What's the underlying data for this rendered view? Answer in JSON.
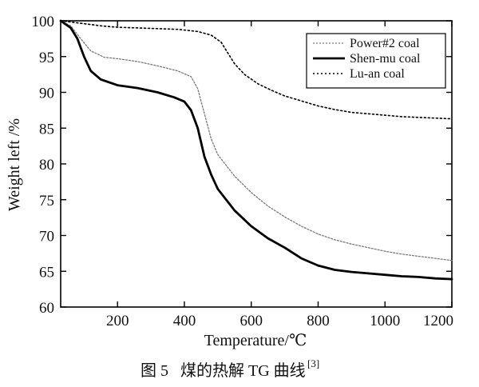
{
  "chart_data": {
    "type": "line",
    "title": "",
    "xlabel": "Temperature/℃",
    "ylabel": "Weight left /%",
    "xlim": [
      30,
      1200
    ],
    "ylim": [
      60,
      100
    ],
    "x_ticks": [
      200,
      400,
      600,
      800,
      1000,
      1200
    ],
    "y_ticks": [
      60,
      65,
      70,
      75,
      80,
      85,
      90,
      95,
      100
    ],
    "x_tick_labels": [
      "200",
      "400",
      "600",
      "800",
      "1000",
      "1200"
    ],
    "y_tick_labels": [
      "60",
      "65",
      "70",
      "75",
      "80",
      "85",
      "90",
      "95",
      "100"
    ],
    "grid": false,
    "legend_position": "top-right",
    "series": [
      {
        "name": "Power#2 coal",
        "line_style": "dotted-gray",
        "color": "#7a7a7a",
        "points": [
          [
            30,
            100
          ],
          [
            60,
            99.3
          ],
          [
            90,
            97.5
          ],
          [
            120,
            95.8
          ],
          [
            160,
            94.9
          ],
          [
            200,
            94.7
          ],
          [
            260,
            94.3
          ],
          [
            320,
            93.7
          ],
          [
            380,
            93.0
          ],
          [
            420,
            92.2
          ],
          [
            440,
            90.5
          ],
          [
            460,
            87.0
          ],
          [
            480,
            83.5
          ],
          [
            500,
            81.3
          ],
          [
            550,
            78.3
          ],
          [
            600,
            76.0
          ],
          [
            650,
            74.1
          ],
          [
            700,
            72.6
          ],
          [
            750,
            71.3
          ],
          [
            800,
            70.2
          ],
          [
            850,
            69.4
          ],
          [
            900,
            68.8
          ],
          [
            950,
            68.3
          ],
          [
            1000,
            67.8
          ],
          [
            1050,
            67.4
          ],
          [
            1100,
            67.1
          ],
          [
            1150,
            66.8
          ],
          [
            1200,
            66.5
          ]
        ]
      },
      {
        "name": "Shen-mu coal",
        "line_style": "solid-thick",
        "color": "#000000",
        "points": [
          [
            30,
            100
          ],
          [
            60,
            99.0
          ],
          [
            80,
            97.5
          ],
          [
            100,
            95.0
          ],
          [
            120,
            93.0
          ],
          [
            150,
            91.8
          ],
          [
            200,
            91.0
          ],
          [
            260,
            90.6
          ],
          [
            320,
            90.0
          ],
          [
            370,
            89.3
          ],
          [
            400,
            88.7
          ],
          [
            420,
            87.5
          ],
          [
            440,
            85.0
          ],
          [
            460,
            81.0
          ],
          [
            480,
            78.5
          ],
          [
            500,
            76.5
          ],
          [
            550,
            73.5
          ],
          [
            600,
            71.3
          ],
          [
            650,
            69.6
          ],
          [
            700,
            68.3
          ],
          [
            750,
            66.8
          ],
          [
            800,
            65.8
          ],
          [
            850,
            65.2
          ],
          [
            900,
            64.9
          ],
          [
            950,
            64.7
          ],
          [
            1000,
            64.5
          ],
          [
            1050,
            64.3
          ],
          [
            1100,
            64.2
          ],
          [
            1150,
            64.0
          ],
          [
            1200,
            63.9
          ]
        ]
      },
      {
        "name": "Lu-an coal",
        "line_style": "dotted-dense",
        "color": "#000000",
        "points": [
          [
            30,
            100
          ],
          [
            100,
            99.6
          ],
          [
            150,
            99.3
          ],
          [
            200,
            99.1
          ],
          [
            260,
            99.0
          ],
          [
            320,
            98.9
          ],
          [
            380,
            98.8
          ],
          [
            440,
            98.5
          ],
          [
            480,
            98.0
          ],
          [
            510,
            97.0
          ],
          [
            530,
            95.5
          ],
          [
            550,
            94.0
          ],
          [
            580,
            92.5
          ],
          [
            620,
            91.2
          ],
          [
            660,
            90.3
          ],
          [
            700,
            89.5
          ],
          [
            750,
            88.8
          ],
          [
            800,
            88.1
          ],
          [
            850,
            87.6
          ],
          [
            900,
            87.2
          ],
          [
            950,
            87.0
          ],
          [
            1000,
            86.8
          ],
          [
            1050,
            86.6
          ],
          [
            1100,
            86.5
          ],
          [
            1150,
            86.4
          ],
          [
            1200,
            86.3
          ]
        ]
      }
    ]
  },
  "caption": {
    "figure_label": "图 5",
    "text": "煤的热解 TG 曲线",
    "reference": "[3]"
  }
}
